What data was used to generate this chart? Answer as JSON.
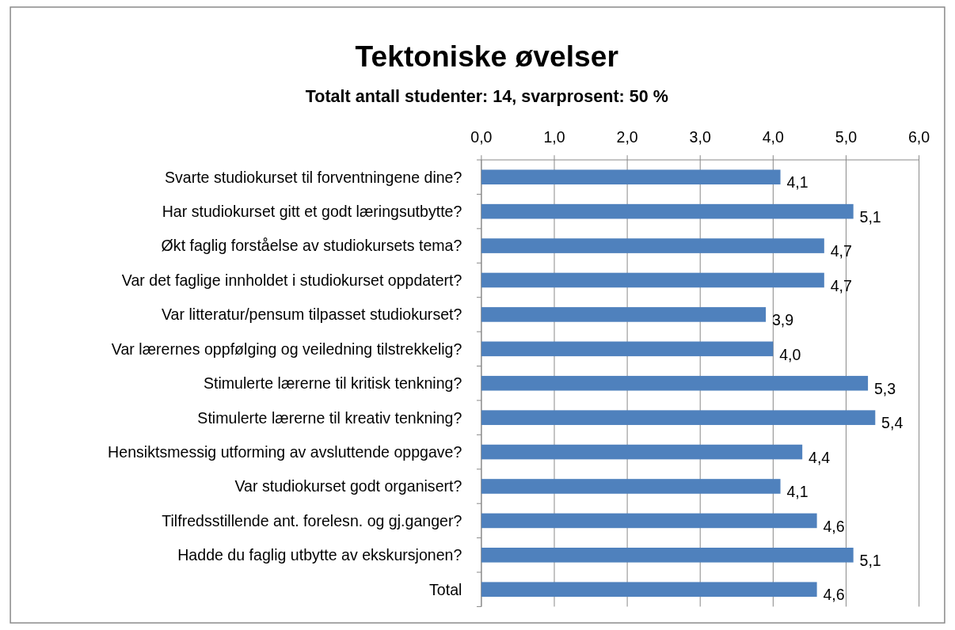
{
  "chart_data": {
    "type": "bar",
    "orientation": "horizontal",
    "title": "Tektoniske øvelser",
    "subtitle": "Totalt antall studenter: 14, svarprosent: 50 %",
    "categories": [
      "Svarte studiokurset til forventningene dine?",
      "Har studiokurset gitt et godt læringsutbytte?",
      "Økt faglig forståelse av studiokursets tema?",
      "Var det faglige innholdet i studiokurset oppdatert?",
      "Var litteratur/pensum tilpasset studiokurset?",
      "Var lærernes oppfølging og veiledning tilstrekkelig?",
      "Stimulerte lærerne til kritisk tenkning?",
      "Stimulerte lærerne til kreativ tenkning?",
      "Hensiktsmessig utforming av avsluttende oppgave?",
      "Var studiokurset godt organisert?",
      "Tilfredsstillende ant. forelesn. og gj.ganger?",
      "Hadde du faglig utbytte av ekskursjonen?",
      "Total"
    ],
    "values": [
      4.1,
      5.1,
      4.7,
      4.7,
      3.9,
      4.0,
      5.3,
      5.4,
      4.4,
      4.1,
      4.6,
      5.1,
      4.6
    ],
    "value_labels": [
      "4,1",
      "5,1",
      "4,7",
      "4,7",
      "3,9",
      "4,0",
      "5,3",
      "5,4",
      "4,4",
      "4,1",
      "4,6",
      "5,1",
      "4,6"
    ],
    "color": "#4f81bd",
    "xlim": [
      0,
      6
    ],
    "xticks": [
      {
        "value": 0,
        "label": "0,0"
      },
      {
        "value": 1,
        "label": "1,0"
      },
      {
        "value": 2,
        "label": "2,0"
      },
      {
        "value": 3,
        "label": "3,0"
      },
      {
        "value": 4,
        "label": "4,0"
      },
      {
        "value": 5,
        "label": "5,0"
      },
      {
        "value": 6,
        "label": "6,0"
      }
    ],
    "grid": "x"
  }
}
